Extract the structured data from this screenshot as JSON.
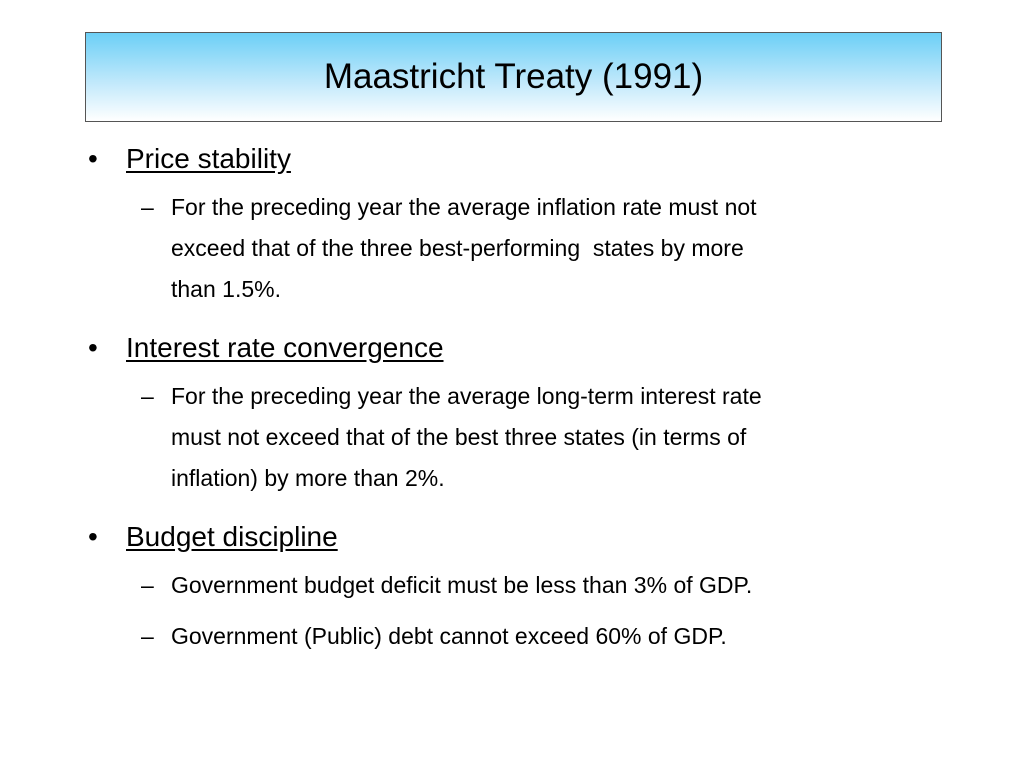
{
  "header": {
    "title": "Maastricht Treaty (1991)"
  },
  "bullets": [
    {
      "heading": "Price stability",
      "items": [
        [
          "For the preceding year the average inflation rate must not",
          "exceed that of the three best-performing  states by more",
          "than 1.5%."
        ]
      ]
    },
    {
      "heading": "Interest rate convergence",
      "items": [
        [
          "For the preceding year the average long-term interest rate",
          "must not exceed that of the best three states (in terms of",
          "inflation) by more than 2%."
        ]
      ]
    },
    {
      "heading": "Budget discipline",
      "items": [
        [
          "Government budget deficit must be less than 3% of GDP."
        ],
        [
          "Government (Public) debt cannot exceed 60% of GDP."
        ]
      ]
    }
  ]
}
